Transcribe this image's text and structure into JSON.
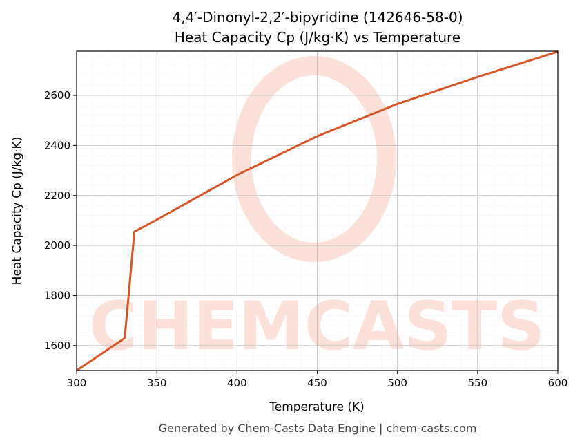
{
  "chart_data": {
    "type": "line",
    "title": "4,4′-Dinonyl-2,2′-bipyridine (142646-58-0)",
    "subtitle": "Heat Capacity Cp (J/kg·K) vs Temperature",
    "x_label": "Temperature (K)",
    "y_label": "Heat Capacity Cp (J/kg·K)",
    "footer": "Generated by Chem-Casts Data Engine | chem-casts.com",
    "watermark": "CHEMCASTS",
    "x": [
      300,
      330,
      336,
      350,
      400,
      450,
      500,
      550,
      600
    ],
    "series": [
      {
        "name": "Cp",
        "color": "#d95525",
        "values": [
          1500,
          1630,
          2055,
          2103,
          2282,
          2437,
          2566,
          2674,
          2775
        ]
      }
    ],
    "xlim": [
      300,
      600
    ],
    "xticks": [
      300,
      350,
      400,
      450,
      500,
      550,
      600
    ],
    "ylim": [
      1500,
      2777
    ],
    "yticks": [
      1600,
      1800,
      2000,
      2200,
      2400,
      2600
    ],
    "grid": true
  }
}
